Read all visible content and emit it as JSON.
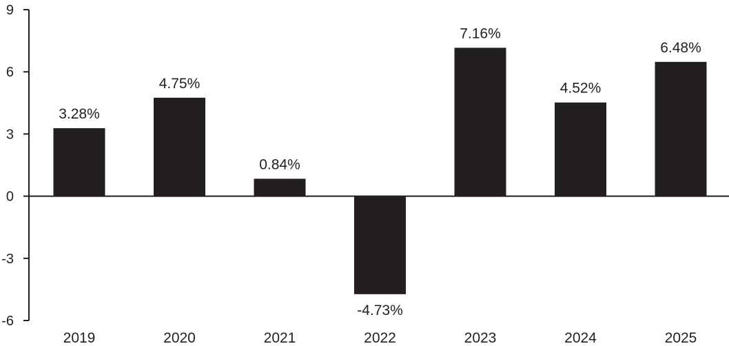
{
  "chart_data": {
    "type": "bar",
    "title": "",
    "xlabel": "",
    "ylabel": "",
    "categories": [
      "2019",
      "2020",
      "2021",
      "2022",
      "2023",
      "2024",
      "2025"
    ],
    "values": [
      3.28,
      4.75,
      0.84,
      -4.73,
      7.16,
      4.52,
      6.48
    ],
    "data_labels": [
      "3.28%",
      "4.75%",
      "0.84%",
      "-4.73%",
      "7.16%",
      "4.52%",
      "6.48%"
    ],
    "yticks": [
      9,
      6,
      3,
      0,
      -3,
      -6
    ],
    "ytick_labels": [
      "9",
      "6",
      "3",
      "0",
      "-3",
      "-6"
    ],
    "ylim": [
      -6,
      9
    ],
    "grid": false,
    "legend": "none",
    "colors": {
      "bar": "#231f20",
      "axis": "#231f20",
      "text": "#231f20"
    }
  }
}
